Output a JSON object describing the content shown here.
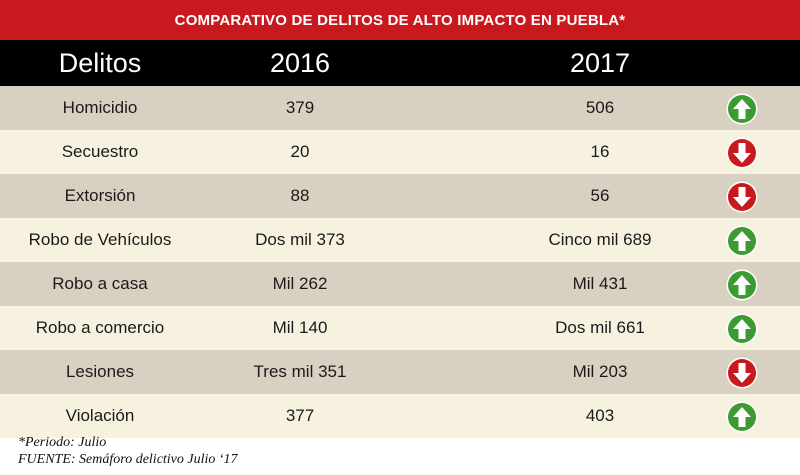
{
  "title": "COMPARATIVO DE DELITOS DE ALTO IMPACTO EN PUEBLA*",
  "headers": {
    "delitos": "Delitos",
    "y2016": "2016",
    "y2017": "2017"
  },
  "colors": {
    "title_bg": "#c8191e",
    "header_bg": "#000000",
    "row_dark": "#d8d1c2",
    "row_light": "#f7f2e0",
    "arrow_up": "#3c9a32",
    "arrow_down": "#c8191e"
  },
  "rows": [
    {
      "delito": "Homicidio",
      "v2016": "379",
      "v2017": "506",
      "trend": "up"
    },
    {
      "delito": "Secuestro",
      "v2016": "20",
      "v2017": "16",
      "trend": "down"
    },
    {
      "delito": "Extorsión",
      "v2016": "88",
      "v2017": "56",
      "trend": "down"
    },
    {
      "delito": "Robo de Vehículos",
      "v2016": "Dos mil 373",
      "v2017": "Cinco mil 689",
      "trend": "up"
    },
    {
      "delito": "Robo a casa",
      "v2016": "Mil 262",
      "v2017": "Mil 431",
      "trend": "up"
    },
    {
      "delito": "Robo a comercio",
      "v2016": "Mil 140",
      "v2017": "Dos mil 661",
      "trend": "up"
    },
    {
      "delito": "Lesiones",
      "v2016": "Tres mil 351",
      "v2017": "Mil 203",
      "trend": "down"
    },
    {
      "delito": "Violación",
      "v2016": "377",
      "v2017": "403",
      "trend": "up"
    }
  ],
  "footnote_period": "*Periodo: Julio",
  "footnote_source": "FUENTE: Semáforo delictivo Julio ‘17",
  "chart_data": {
    "type": "table",
    "title": "COMPARATIVO DE DELITOS DE ALTO IMPACTO EN PUEBLA*",
    "columns": [
      "Delitos",
      "2016",
      "2017"
    ],
    "rows": [
      [
        "Homicidio",
        "379",
        "506"
      ],
      [
        "Secuestro",
        "20",
        "16"
      ],
      [
        "Extorsión",
        "88",
        "56"
      ],
      [
        "Robo de Vehículos",
        "Dos mil 373",
        "Cinco mil 689"
      ],
      [
        "Robo a casa",
        "Mil 262",
        "Mil 431"
      ],
      [
        "Robo a comercio",
        "Mil 140",
        "Dos mil 661"
      ],
      [
        "Lesiones",
        "Tres mil 351",
        "Mil 203"
      ],
      [
        "Violación",
        "377",
        "403"
      ]
    ],
    "trend_icons": [
      "up",
      "down",
      "down",
      "up",
      "up",
      "up",
      "down",
      "up"
    ]
  }
}
